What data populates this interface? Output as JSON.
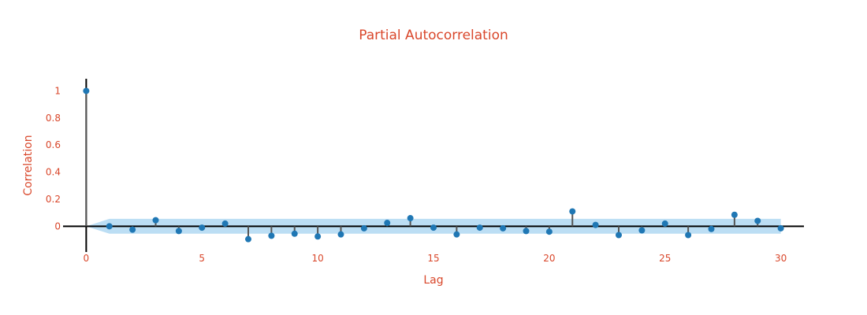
{
  "chart_data": {
    "type": "scatter",
    "title": "Partial Autocorrelation",
    "xlabel": "Lag",
    "ylabel": "Correlation",
    "xlim": [
      -1,
      31
    ],
    "ylim": [
      -0.19,
      1.09
    ],
    "x_ticks": [
      0,
      5,
      10,
      15,
      20,
      25,
      30
    ],
    "x_tick_labels": [
      "0",
      "5",
      "10",
      "15",
      "20",
      "25",
      "30"
    ],
    "y_ticks": [
      0,
      0.2,
      0.4,
      0.6,
      0.8,
      1
    ],
    "y_tick_labels": [
      "0",
      "0.2",
      "0.4",
      "0.6",
      "0.8",
      "1"
    ],
    "grid": false,
    "lags": [
      0,
      1,
      2,
      3,
      4,
      5,
      6,
      7,
      8,
      9,
      10,
      11,
      12,
      13,
      14,
      15,
      16,
      17,
      18,
      19,
      20,
      21,
      22,
      23,
      24,
      25,
      26,
      27,
      28,
      29,
      30
    ],
    "values": [
      1,
      0.0,
      -0.025,
      0.045,
      -0.035,
      -0.01,
      0.02,
      -0.095,
      -0.07,
      -0.055,
      -0.075,
      -0.06,
      -0.015,
      0.025,
      0.06,
      -0.01,
      -0.06,
      -0.01,
      -0.015,
      -0.035,
      -0.04,
      0.11,
      0.01,
      -0.065,
      -0.03,
      0.02,
      -0.065,
      -0.02,
      0.085,
      0.04,
      -0.015
    ],
    "confidence_band": {
      "lags": [
        0,
        1,
        2,
        3,
        4,
        5,
        6,
        7,
        8,
        9,
        10,
        11,
        12,
        13,
        14,
        15,
        16,
        17,
        18,
        19,
        20,
        21,
        22,
        23,
        24,
        25,
        26,
        27,
        28,
        29,
        30
      ],
      "upper": [
        0,
        0.055,
        0.055,
        0.055,
        0.055,
        0.055,
        0.055,
        0.055,
        0.055,
        0.055,
        0.055,
        0.055,
        0.055,
        0.055,
        0.055,
        0.055,
        0.055,
        0.055,
        0.055,
        0.055,
        0.055,
        0.055,
        0.055,
        0.055,
        0.055,
        0.055,
        0.055,
        0.055,
        0.055,
        0.055,
        0.055
      ],
      "lower": [
        0,
        -0.055,
        -0.055,
        -0.055,
        -0.055,
        -0.055,
        -0.055,
        -0.055,
        -0.055,
        -0.055,
        -0.055,
        -0.055,
        -0.055,
        -0.055,
        -0.055,
        -0.055,
        -0.055,
        -0.055,
        -0.055,
        -0.055,
        -0.055,
        -0.055,
        -0.055,
        -0.055,
        -0.055,
        -0.055,
        -0.055,
        -0.055,
        -0.055,
        -0.055,
        -0.055
      ]
    },
    "colors": {
      "text": "#d9472b",
      "marker": "#1f77b4",
      "stem": "#555555",
      "band": "#a6d3f0",
      "axis": "#000000"
    }
  }
}
